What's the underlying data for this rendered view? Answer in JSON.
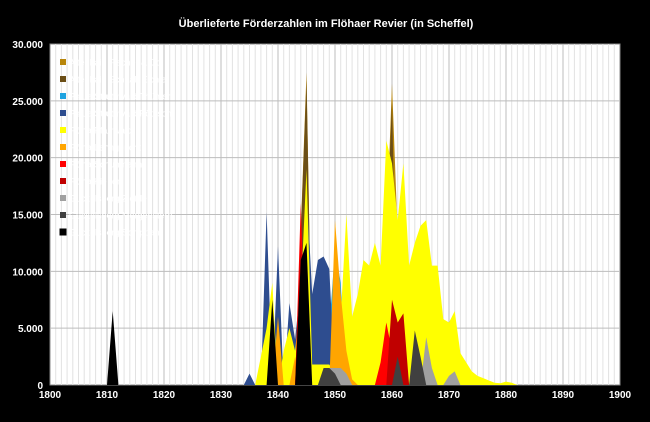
{
  "chart_data": {
    "type": "area",
    "title": "Überlieferte Förderzahlen im Flöhaer Revier  (in Scheffel)",
    "xlabel": "",
    "ylabel": "",
    "xlim": [
      1800,
      1900
    ],
    "ylim": [
      0,
      30000
    ],
    "x_ticks": [
      "1800",
      "1810",
      "1820",
      "1830",
      "1840",
      "1850",
      "1860",
      "1870",
      "1880",
      "1890",
      "1900"
    ],
    "y_ticks": [
      "0",
      "5.000",
      "10.000",
      "15.000",
      "20.000",
      "25.000",
      "30.000"
    ],
    "legend_position": "top-left",
    "series": [
      {
        "name": "Altenhain Fischer & Co.",
        "color": "#B8860B",
        "points": [
          [
            1843,
            0
          ],
          [
            1845,
            27500
          ],
          [
            1846,
            0
          ],
          [
            1858,
            0
          ],
          [
            1860,
            26500
          ],
          [
            1862,
            0
          ]
        ]
      },
      {
        "name": "Altenhain Schaal, Eichler",
        "color": "#6B4E16",
        "points": [
          [
            1843,
            0
          ],
          [
            1845,
            26800
          ],
          [
            1846,
            0
          ],
          [
            1858,
            0
          ],
          [
            1860,
            25000
          ],
          [
            1861,
            0
          ]
        ]
      },
      {
        "name": "Plaue/Struthwald Thümer",
        "color": "#1FA3E0",
        "points": [
          [
            1846,
            0
          ],
          [
            1847,
            2500
          ],
          [
            1848,
            1800
          ],
          [
            1849,
            5000
          ],
          [
            1850,
            12000
          ],
          [
            1851,
            9000
          ],
          [
            1852,
            0
          ]
        ]
      },
      {
        "name": "Plaue/Struthwald Pötzsch",
        "color": "#2E4D8F",
        "points": [
          [
            1834,
            0
          ],
          [
            1835,
            1000
          ],
          [
            1836,
            0
          ],
          [
            1837,
            0
          ],
          [
            1838,
            15200
          ],
          [
            1839,
            0
          ],
          [
            1840,
            12200
          ],
          [
            1841,
            0
          ],
          [
            1842,
            7200
          ],
          [
            1843,
            4000
          ],
          [
            1844,
            9000
          ],
          [
            1845,
            17500
          ],
          [
            1846,
            8000
          ],
          [
            1847,
            11000
          ],
          [
            1848,
            11300
          ],
          [
            1849,
            10200
          ],
          [
            1850,
            0
          ]
        ]
      },
      {
        "name": "Flöha Pfarrwald",
        "color": "#FFFF00",
        "points": [
          [
            1836,
            0
          ],
          [
            1838,
            5000
          ],
          [
            1839,
            9000
          ],
          [
            1840,
            0
          ],
          [
            1841,
            3000
          ],
          [
            1842,
            5000
          ],
          [
            1843,
            3000
          ],
          [
            1844,
            8000
          ],
          [
            1845,
            19000
          ],
          [
            1846,
            1800
          ],
          [
            1849,
            1800
          ],
          [
            1850,
            1000
          ],
          [
            1851,
            6000
          ],
          [
            1852,
            15000
          ],
          [
            1853,
            6000
          ],
          [
            1854,
            8000
          ],
          [
            1855,
            11000
          ],
          [
            1856,
            10500
          ],
          [
            1857,
            12500
          ],
          [
            1858,
            10500
          ],
          [
            1859,
            21500
          ],
          [
            1860,
            19500
          ],
          [
            1861,
            14500
          ],
          [
            1862,
            19500
          ],
          [
            1863,
            10500
          ],
          [
            1864,
            12500
          ],
          [
            1865,
            14000
          ],
          [
            1866,
            14500
          ],
          [
            1867,
            10500
          ],
          [
            1868,
            10500
          ],
          [
            1869,
            5800
          ],
          [
            1870,
            5500
          ],
          [
            1871,
            6500
          ],
          [
            1872,
            2800
          ],
          [
            1873,
            2000
          ],
          [
            1874,
            1200
          ],
          [
            1875,
            800
          ],
          [
            1876,
            600
          ],
          [
            1877,
            400
          ],
          [
            1878,
            200
          ],
          [
            1879,
            150
          ],
          [
            1880,
            300
          ],
          [
            1881,
            200
          ],
          [
            1882,
            0
          ]
        ]
      },
      {
        "name": "Flöha Lehngericht",
        "color": "#FFA500",
        "points": [
          [
            1839,
            0
          ],
          [
            1840,
            6000
          ],
          [
            1841,
            0
          ],
          [
            1842,
            0
          ],
          [
            1843,
            2500
          ],
          [
            1844,
            0
          ],
          [
            1849,
            0
          ],
          [
            1850,
            14500
          ],
          [
            1851,
            8000
          ],
          [
            1852,
            3000
          ],
          [
            1853,
            500
          ],
          [
            1854,
            0
          ]
        ]
      },
      {
        "name": "Flöha Schuhmann",
        "color": "#FF0000",
        "points": [
          [
            1843,
            0
          ],
          [
            1844,
            16000
          ],
          [
            1845,
            0
          ],
          [
            1857,
            0
          ],
          [
            1858,
            2000
          ],
          [
            1859,
            5500
          ],
          [
            1860,
            3000
          ],
          [
            1861,
            4000
          ],
          [
            1862,
            2000
          ],
          [
            1863,
            0
          ]
        ]
      },
      {
        "name": "Flöha Kieber",
        "color": "#C00000",
        "points": [
          [
            1843,
            0
          ],
          [
            1844,
            13000
          ],
          [
            1845,
            0
          ],
          [
            1859,
            0
          ],
          [
            1860,
            7500
          ],
          [
            1861,
            5500
          ],
          [
            1862,
            6300
          ],
          [
            1863,
            0
          ]
        ]
      },
      {
        "name": "Gückelsberg Zießler",
        "color": "#A0A0A0",
        "points": [
          [
            1847,
            0
          ],
          [
            1848,
            700
          ],
          [
            1849,
            1500
          ],
          [
            1850,
            1500
          ],
          [
            1851,
            1500
          ],
          [
            1852,
            1000
          ],
          [
            1853,
            0
          ],
          [
            1865,
            0
          ],
          [
            1866,
            4200
          ],
          [
            1867,
            1500
          ],
          [
            1868,
            0
          ],
          [
            1869,
            0
          ],
          [
            1870,
            800
          ],
          [
            1871,
            1200
          ],
          [
            1872,
            0
          ]
        ]
      },
      {
        "name": "Gückelsberg Morgenstern",
        "color": "#404040",
        "points": [
          [
            1847,
            0
          ],
          [
            1848,
            1500
          ],
          [
            1849,
            1500
          ],
          [
            1850,
            1000
          ],
          [
            1851,
            0
          ],
          [
            1860,
            0
          ],
          [
            1861,
            2500
          ],
          [
            1862,
            0
          ],
          [
            1863,
            0
          ],
          [
            1864,
            4800
          ],
          [
            1865,
            2500
          ],
          [
            1866,
            0
          ]
        ]
      },
      {
        "name": "Gückelsberg Schippan",
        "color": "#000000",
        "points": [
          [
            1810,
            0
          ],
          [
            1811,
            6500
          ],
          [
            1812,
            0
          ],
          [
            1838,
            0
          ],
          [
            1839,
            7500
          ],
          [
            1840,
            0
          ],
          [
            1843,
            0
          ],
          [
            1844,
            11000
          ],
          [
            1845,
            12500
          ],
          [
            1846,
            0
          ]
        ]
      }
    ]
  }
}
